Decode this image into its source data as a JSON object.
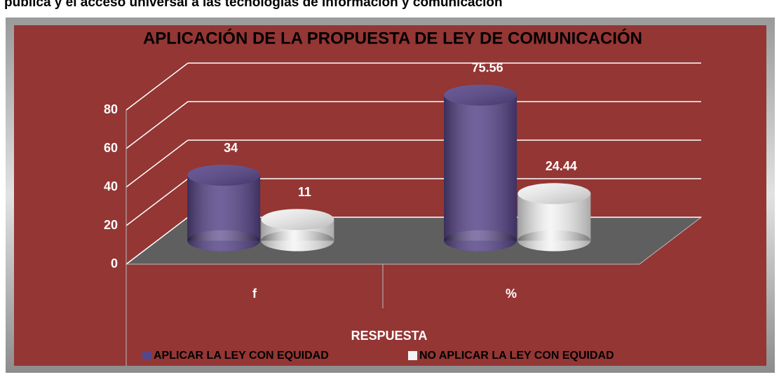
{
  "caption": "pública y el acceso universal a las tecnologías de información y comunicación",
  "chart_data": {
    "type": "bar3d",
    "title": "APLICACIÓN DE LA PROPUESTA DE LEY DE COMUNICACIÓN",
    "x_label": "RESPUESTA",
    "categories": [
      "f",
      "%"
    ],
    "series": [
      {
        "name": "APLICAR LA LEY CON EQUIDAD",
        "color": "#58468a",
        "values": [
          34,
          75.56
        ]
      },
      {
        "name": "NO APLICAR LA LEY CON EQUIDAD",
        "color": "#f4f4f4",
        "values": [
          11,
          24.44
        ]
      }
    ],
    "ylim": [
      0,
      80
    ],
    "yticks": [
      0,
      20,
      40,
      60,
      80
    ],
    "grid": true,
    "legend": "bottom"
  }
}
